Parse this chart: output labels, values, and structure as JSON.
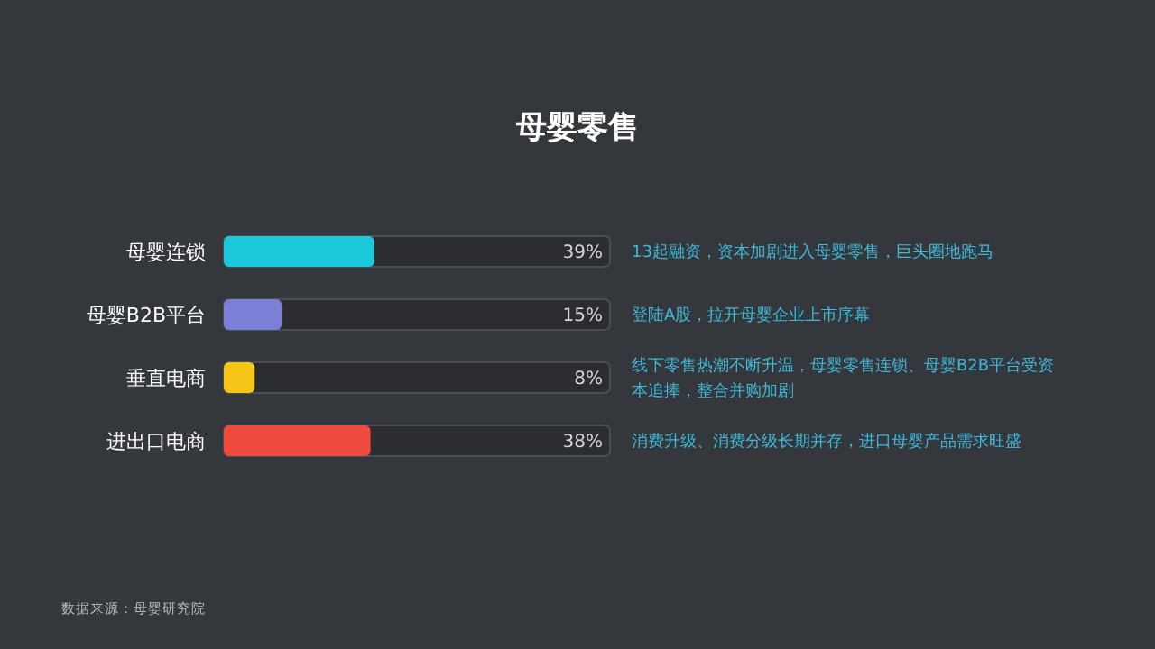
{
  "chart_data": {
    "type": "bar",
    "orientation": "horizontal",
    "title": "母婴零售",
    "categories": [
      "母婴连锁",
      "母婴B2B平台",
      "垂直电商",
      "进出口电商"
    ],
    "values": [
      39,
      15,
      8,
      38
    ],
    "colors": [
      "#1ec8dc",
      "#7b7fd6",
      "#f5c518",
      "#f04a3e"
    ],
    "xlim": [
      0,
      100
    ],
    "value_labels": [
      "39%",
      "15%",
      "8%",
      "38%"
    ],
    "tick_labels": "y",
    "annotations": [
      "13起融资，资本加剧进入母婴零售，巨头圈地跑马",
      "登陆A股，拉开母婴企业上市序幕",
      "线下零售热潮不断升温，母婴零售连锁、母婴B2B平台受资本追捧，整合并购加剧",
      "消费升级、消费分级长期并存，进口母婴产品需求旺盛",
      "数据来源：母婴研究院"
    ]
  }
}
